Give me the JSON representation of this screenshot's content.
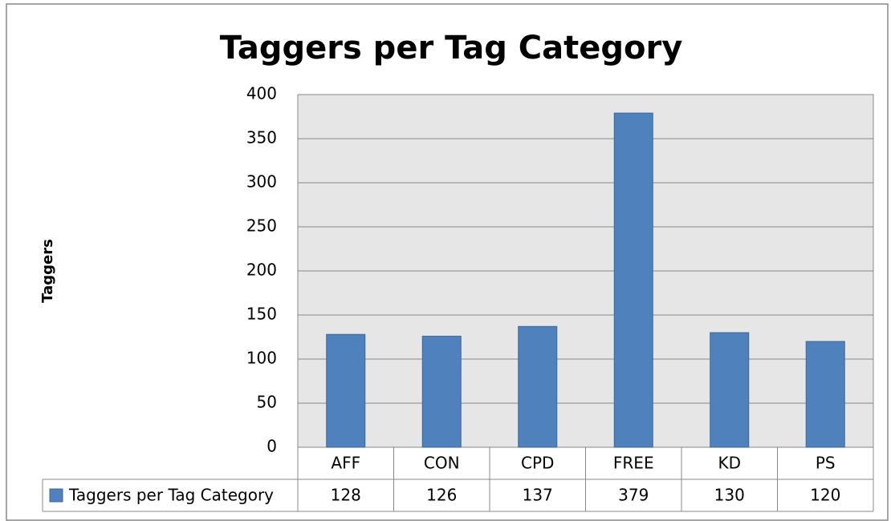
{
  "chart_data": {
    "type": "bar",
    "title": "Taggers per Tag Category",
    "y_label": "Taggers",
    "categories": [
      "AFF",
      "CON",
      "CPD",
      "FREE",
      "KD",
      "PS"
    ],
    "series": [
      {
        "name": "Taggers per Tag Category",
        "color": "#4f81bd",
        "values": [
          128,
          126,
          137,
          379,
          130,
          120
        ]
      }
    ],
    "ylim": [
      0,
      400
    ],
    "yticks": [
      0,
      50,
      100,
      150,
      200,
      250,
      300,
      350,
      400
    ],
    "grid": true
  }
}
